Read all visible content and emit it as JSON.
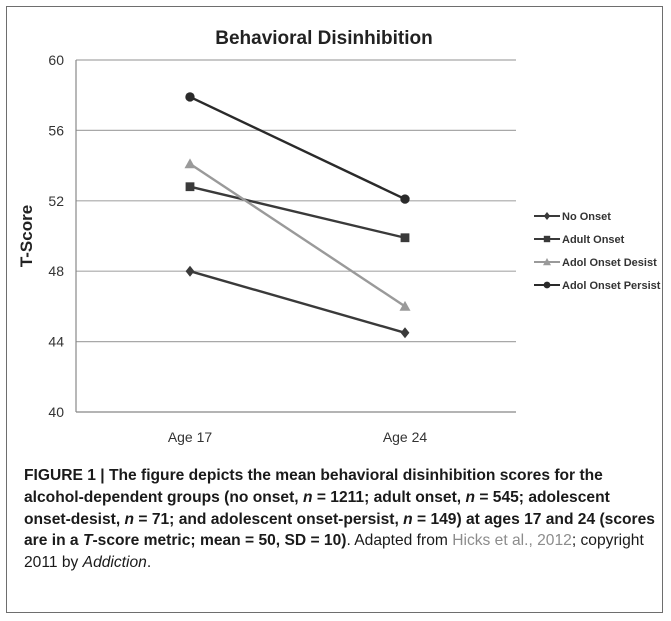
{
  "chart_data": {
    "type": "line",
    "title": "Behavioral Disinhibition",
    "xlabel": "",
    "ylabel": "T-Score",
    "categories": [
      "Age 17",
      "Age 24"
    ],
    "ylim": [
      40,
      60
    ],
    "yticks": [
      40,
      44,
      48,
      52,
      56,
      60
    ],
    "grid": true,
    "legend_position": "right",
    "series": [
      {
        "name": "No Onset",
        "values": [
          48.0,
          44.5
        ],
        "marker": "diamond",
        "color": "#3a3a3a"
      },
      {
        "name": "Adult Onset",
        "values": [
          52.8,
          49.9
        ],
        "marker": "square",
        "color": "#3a3a3a"
      },
      {
        "name": "Adol Onset Desist",
        "values": [
          54.1,
          46.0
        ],
        "marker": "triangle",
        "color": "#9a9a9a"
      },
      {
        "name": "Adol Onset Persist",
        "values": [
          57.9,
          52.1
        ],
        "marker": "circle",
        "color": "#2a2a2a"
      }
    ]
  },
  "caption": {
    "lead": "FIGURE 1 | The figure depicts the mean behavioral disinhibition scores for the alcohol-dependent groups (no onset,",
    "n1_label": "n",
    "n1_value": " = 1211; adult onset,",
    "n2_label": "n",
    "n2_value": " = 545; adolescent onset-desist,",
    "n3_label": "n",
    "n3_value": " = 71; and adolescent onset-persist,",
    "n4_label": "n",
    "n4_value": " = 149) at ages 17 and 24 (scores are in a",
    "t_label": "T",
    "metric": "-score metric; mean = 50, SD = 10)",
    "adapted_prefix": ". Adapted from ",
    "citation": "Hicks et al., 2012",
    "copyright": "; copyright 2011 by ",
    "journal": "Addiction",
    "end": "."
  }
}
